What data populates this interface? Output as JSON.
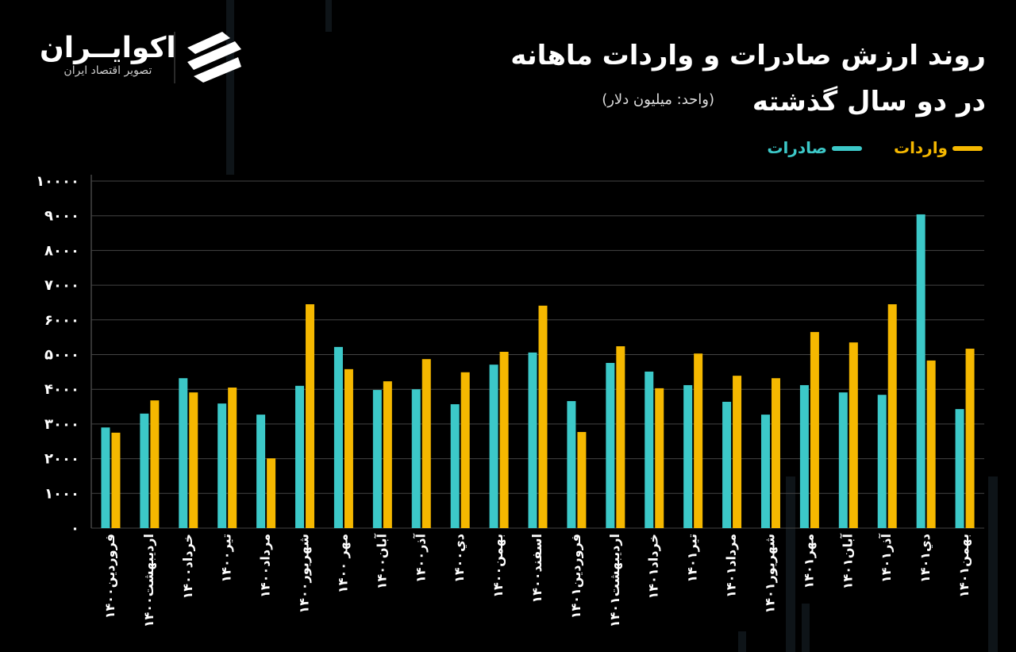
{
  "brand": {
    "name": "اکوایــران",
    "tagline": "تصویر اقتصاد ایران"
  },
  "chart_data": {
    "type": "bar",
    "title": "روند ارزش صادرات و واردات ماهانه",
    "title_line2": "در دو سال گذشته",
    "subtitle": "(واحد: میلیون دلار)",
    "categories": [
      "فروردین۱۴۰۰",
      "اردیبهشت۱۴۰۰",
      "خرداد۱۴۰۰",
      "تیر۱۴۰۰",
      "مرداد۱۴۰۰",
      "شهریور۱۴۰۰",
      "مهر ۱۴۰۰",
      "آبان۱۴۰۰",
      "آذر۱۴۰۰",
      "دي۱۴۰۰",
      "بهمن۱۴۰۰",
      "اسفند۱۴۰۰",
      "فروردین۱۴۰۱",
      "اردیبهشت۱۴۰۱",
      "خرداد۱۴۰۱",
      "تیر۱۴۰۱",
      "مرداد۱۴۰۱",
      "شهریور۱۴۰۱",
      "مهر۱۴۰۱",
      "آبان۱۴۰۱",
      "آذر۱۴۰۱",
      "دي۱۴۰۱",
      "بهمن۱۴۰۱"
    ],
    "series": [
      {
        "name": "صادرات",
        "color": "#3cc8c8",
        "values": [
          2900,
          3300,
          4320,
          3590,
          3270,
          4100,
          5220,
          3980,
          4000,
          3570,
          4710,
          5060,
          3660,
          4760,
          4510,
          4120,
          3640,
          3270,
          4120,
          3910,
          3840,
          9040,
          3430
        ]
      },
      {
        "name": "واردات",
        "color": "#f5b800",
        "values": [
          2750,
          3680,
          3910,
          4050,
          2010,
          6450,
          4580,
          4230,
          4870,
          4490,
          5080,
          6410,
          2770,
          5240,
          4030,
          5030,
          4390,
          4320,
          5650,
          5350,
          6450,
          4830,
          5170
        ]
      }
    ],
    "ylim": [
      0,
      10000
    ],
    "yticks": [
      {
        "value": 0,
        "label": "۰"
      },
      {
        "value": 1000,
        "label": "۱۰۰۰"
      },
      {
        "value": 2000,
        "label": "۲۰۰۰"
      },
      {
        "value": 3000,
        "label": "۳۰۰۰"
      },
      {
        "value": 4000,
        "label": "۴۰۰۰"
      },
      {
        "value": 5000,
        "label": "۵۰۰۰"
      },
      {
        "value": 6000,
        "label": "۶۰۰۰"
      },
      {
        "value": 7000,
        "label": "۷۰۰۰"
      },
      {
        "value": 8000,
        "label": "۸۰۰۰"
      },
      {
        "value": 9000,
        "label": "۹۰۰۰"
      },
      {
        "value": 10000,
        "label": "۱۰۰۰۰"
      }
    ],
    "grid": true
  }
}
